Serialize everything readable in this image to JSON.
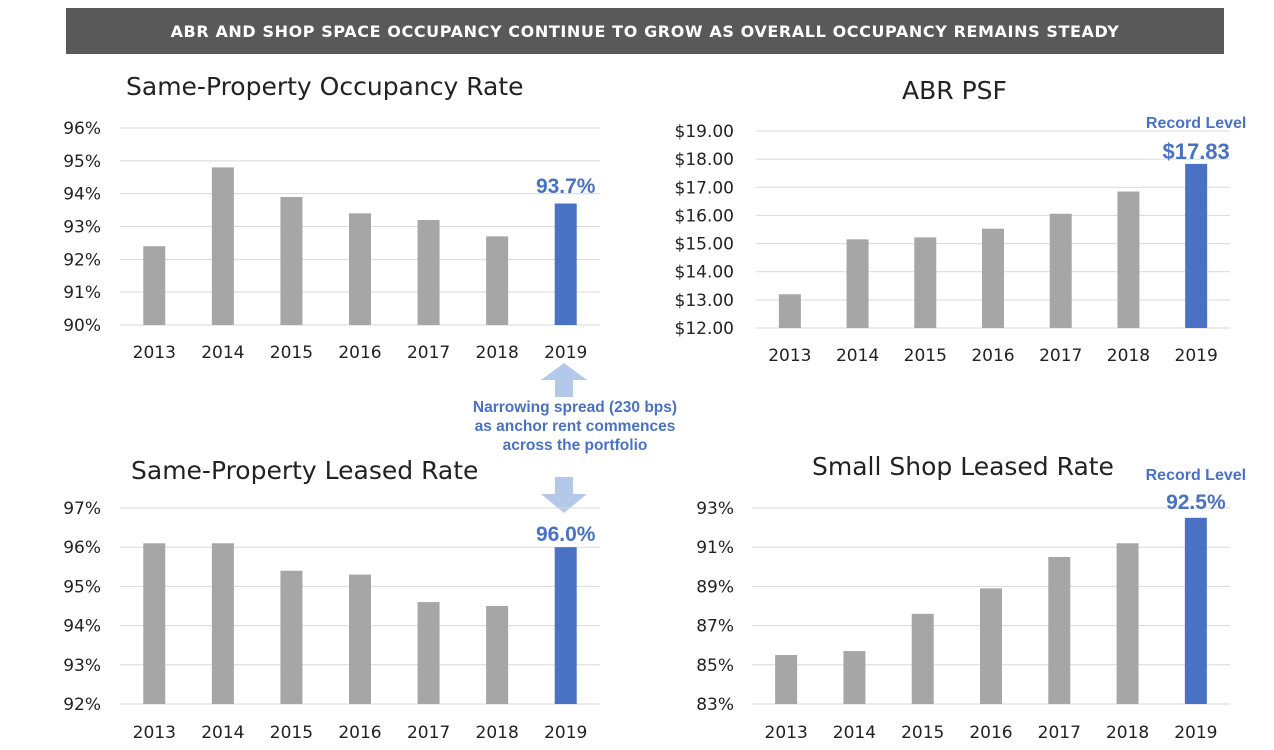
{
  "banner": "ABR AND SHOP SPACE OCCUPANCY CONTINUE TO GROW AS OVERALL OCCUPANCY REMAINS STEADY",
  "spread_note": "Narrowing spread (230 bps) as anchor rent commences across the portfolio",
  "colors": {
    "bar": "#a6a6a6",
    "highlight": "#4a72c4",
    "grid": "#d9d9d9",
    "arrow": "#b4c9e9"
  },
  "chart_data": [
    {
      "id": "occupancy",
      "type": "bar",
      "title": "Same-Property Occupancy Rate",
      "categories": [
        "2013",
        "2014",
        "2015",
        "2016",
        "2017",
        "2018",
        "2019"
      ],
      "values": [
        92.4,
        94.8,
        93.9,
        93.4,
        93.2,
        92.7,
        93.7
      ],
      "ylim": [
        90,
        96
      ],
      "yticks": [
        "90%",
        "91%",
        "92%",
        "93%",
        "94%",
        "95%",
        "96%"
      ],
      "highlight_last": true,
      "value_label": "93.7%",
      "note": "",
      "grid": true
    },
    {
      "id": "abr",
      "type": "bar",
      "title": "ABR PSF",
      "categories": [
        "2013",
        "2014",
        "2015",
        "2016",
        "2017",
        "2018",
        "2019"
      ],
      "values": [
        13.2,
        15.15,
        15.22,
        15.53,
        16.06,
        16.85,
        17.83
      ],
      "ylim": [
        12,
        19
      ],
      "yticks": [
        "$12.00",
        "$13.00",
        "$14.00",
        "$15.00",
        "$16.00",
        "$17.00",
        "$18.00",
        "$19.00"
      ],
      "highlight_last": true,
      "value_label": "$17.83",
      "note": "Record Level",
      "grid": true
    },
    {
      "id": "leased",
      "type": "bar",
      "title": "Same-Property Leased Rate",
      "categories": [
        "2013",
        "2014",
        "2015",
        "2016",
        "2017",
        "2018",
        "2019"
      ],
      "values": [
        96.1,
        96.1,
        95.4,
        95.3,
        94.6,
        94.5,
        96.0
      ],
      "ylim": [
        92,
        97
      ],
      "yticks": [
        "92%",
        "93%",
        "94%",
        "95%",
        "96%",
        "97%"
      ],
      "highlight_last": true,
      "value_label": "96.0%",
      "note": "",
      "grid": true
    },
    {
      "id": "smallshop",
      "type": "bar",
      "title": "Small Shop Leased Rate",
      "categories": [
        "2013",
        "2014",
        "2015",
        "2016",
        "2017",
        "2018",
        "2019"
      ],
      "values": [
        85.5,
        85.7,
        87.6,
        88.9,
        90.5,
        91.2,
        92.5
      ],
      "ylim": [
        83,
        93
      ],
      "yticks": [
        "83%",
        "85%",
        "87%",
        "89%",
        "91%",
        "93%"
      ],
      "highlight_last": true,
      "value_label": "92.5%",
      "note": "Record Level",
      "grid": true
    }
  ]
}
